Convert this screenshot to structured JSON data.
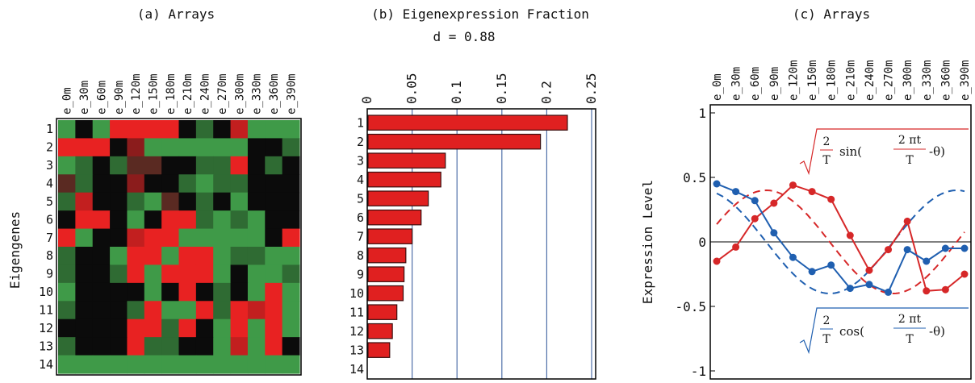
{
  "chart_data": [
    {
      "type": "heatmap",
      "title": "(a) Arrays",
      "ylabel": "Eigengenes",
      "columns": [
        "e_0m",
        "e_30m",
        "e_60m",
        "e_90m",
        "e_120m",
        "e_150m",
        "e_180m",
        "e_210m",
        "e_240m",
        "e_270m",
        "e_300m",
        "e_330m",
        "e_360m",
        "e_390m"
      ],
      "rows": [
        "1",
        "2",
        "3",
        "4",
        "5",
        "6",
        "7",
        "8",
        "9",
        "10",
        "11",
        "12",
        "13",
        "14"
      ],
      "values": [
        [
          -2,
          -3,
          -2,
          3,
          3,
          3,
          3,
          -3,
          -1,
          -3,
          2,
          -2,
          -2,
          -2
        ],
        [
          3,
          3,
          3,
          -3,
          1,
          -2,
          -2,
          -2,
          -2,
          -2,
          -2,
          -3,
          -3,
          -1
        ],
        [
          -2,
          -1,
          -3,
          -1,
          0,
          0,
          -3,
          -3,
          -1,
          -1,
          3,
          -3,
          -1,
          -3
        ],
        [
          0,
          -1,
          -3,
          -3,
          1,
          -3,
          -3,
          -1,
          -2,
          -1,
          -1,
          -3,
          -3,
          -3
        ],
        [
          -1,
          2,
          -3,
          -3,
          -1,
          -2,
          0,
          -3,
          -1,
          -3,
          -2,
          -3,
          -3,
          -3
        ],
        [
          -3,
          3,
          3,
          -3,
          -2,
          -3,
          3,
          3,
          -1,
          -2,
          -1,
          -2,
          -3,
          -3
        ],
        [
          3,
          -2,
          -3,
          -3,
          2,
          3,
          3,
          -2,
          -2,
          -2,
          -2,
          -2,
          -3,
          3
        ],
        [
          -1,
          -3,
          -3,
          -2,
          3,
          3,
          -2,
          3,
          3,
          -2,
          -1,
          -1,
          -2,
          -2
        ],
        [
          -1,
          -3,
          -3,
          -1,
          3,
          -2,
          3,
          3,
          3,
          -2,
          -3,
          -2,
          -2,
          -1
        ],
        [
          -2,
          -3,
          -3,
          -3,
          -3,
          -2,
          -3,
          3,
          -3,
          -1,
          -3,
          -2,
          3,
          -2
        ],
        [
          -1,
          -3,
          -3,
          -3,
          -1,
          3,
          -2,
          -2,
          3,
          -1,
          3,
          2,
          3,
          -2
        ],
        [
          -3,
          -3,
          -3,
          -3,
          3,
          3,
          -1,
          3,
          -3,
          -2,
          3,
          -2,
          3,
          -2
        ],
        [
          -1,
          -3,
          -3,
          -3,
          3,
          -1,
          -1,
          -3,
          -3,
          -2,
          2,
          -2,
          3,
          -3
        ],
        [
          -2,
          -2,
          -2,
          -2,
          -2,
          -2,
          -2,
          -2,
          -2,
          -2,
          -2,
          -2,
          -2,
          -2
        ]
      ]
    },
    {
      "type": "bar",
      "title": "(b) Eigenexpression Fraction",
      "subtitle": "d = 0.88",
      "categories": [
        "1",
        "2",
        "3",
        "4",
        "5",
        "6",
        "7",
        "8",
        "9",
        "10",
        "11",
        "12",
        "13",
        "14"
      ],
      "values": [
        0.223,
        0.193,
        0.087,
        0.082,
        0.068,
        0.06,
        0.05,
        0.043,
        0.041,
        0.04,
        0.033,
        0.028,
        0.025,
        0.0
      ],
      "xlim": [
        0,
        0.25
      ],
      "ticks": [
        "0",
        "0.05",
        "0.1",
        "0.15",
        "0.2",
        "0.25"
      ],
      "grid": true,
      "bar_color": "#e02020"
    },
    {
      "type": "line",
      "title": "(c) Arrays",
      "ylabel": "Expression Level",
      "categories": [
        "e_0m",
        "e_30m",
        "e_60m",
        "e_90m",
        "e_120m",
        "e_150m",
        "e_180m",
        "e_210m",
        "e_240m",
        "e_270m",
        "e_300m",
        "e_330m",
        "e_360m",
        "e_390m"
      ],
      "ylim": [
        -1,
        1
      ],
      "yticks": [
        "1",
        "0.5",
        "0",
        "-0.5",
        "-1"
      ],
      "series": [
        {
          "color": "#d62728",
          "values": [
            -0.15,
            -0.04,
            0.18,
            0.3,
            0.44,
            0.39,
            0.33,
            0.05,
            -0.22,
            -0.06,
            0.16,
            -0.38,
            -0.37,
            -0.25
          ]
        },
        {
          "color": "#1f5fb0",
          "values": [
            0.45,
            0.39,
            0.32,
            0.07,
            -0.12,
            -0.23,
            -0.18,
            -0.36,
            -0.33,
            -0.39,
            -0.06,
            -0.15,
            -0.05,
            -0.05
          ]
        }
      ],
      "fits": [
        {
          "color": "#d62728",
          "curve": "sin",
          "amplitude": 0.4,
          "period_min": 400,
          "phase_deg": -20
        },
        {
          "color": "#1f5fb0",
          "curve": "cos",
          "amplitude": 0.4,
          "period_min": 400,
          "phase_deg": -20
        }
      ],
      "annotations": {
        "sin_label": {
          "frac": "2",
          "den": "T",
          "fn": "sin(",
          "arg_num": "2 πt",
          "arg_den": "T",
          "tail": "-θ)"
        },
        "cos_label": {
          "frac": "2",
          "den": "T",
          "fn": "cos(",
          "arg_num": "2 πt",
          "arg_den": "T",
          "tail": "-θ)"
        }
      }
    }
  ]
}
